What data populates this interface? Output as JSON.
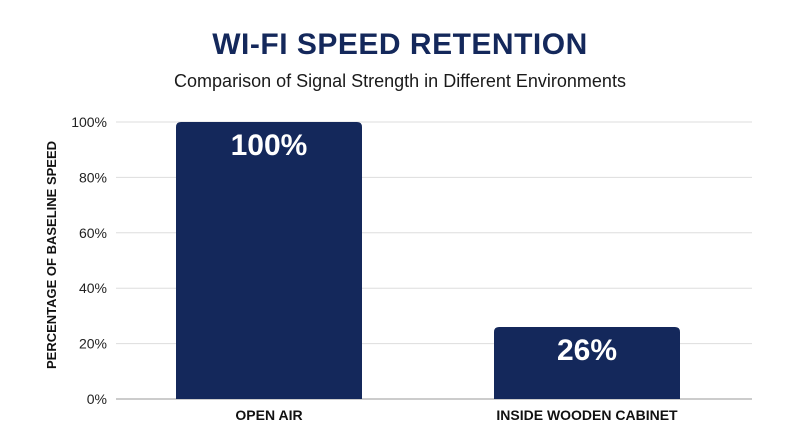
{
  "chart_data": {
    "type": "bar",
    "title": "WI-FI SPEED RETENTION",
    "subtitle": "Comparison of Signal Strength in Different Environments",
    "xlabel": "",
    "ylabel": "PERCENTAGE OF BASELINE SPEED",
    "categories": [
      "OPEN AIR",
      "INSIDE WOODEN CABINET"
    ],
    "values": [
      100,
      26
    ],
    "data_labels": [
      "100%",
      "26%"
    ],
    "yticks": [
      "0%",
      "20%",
      "40%",
      "60%",
      "80%",
      "100%"
    ],
    "ylim": [
      0,
      100
    ],
    "grid": true,
    "bar_color": "#14285b"
  }
}
